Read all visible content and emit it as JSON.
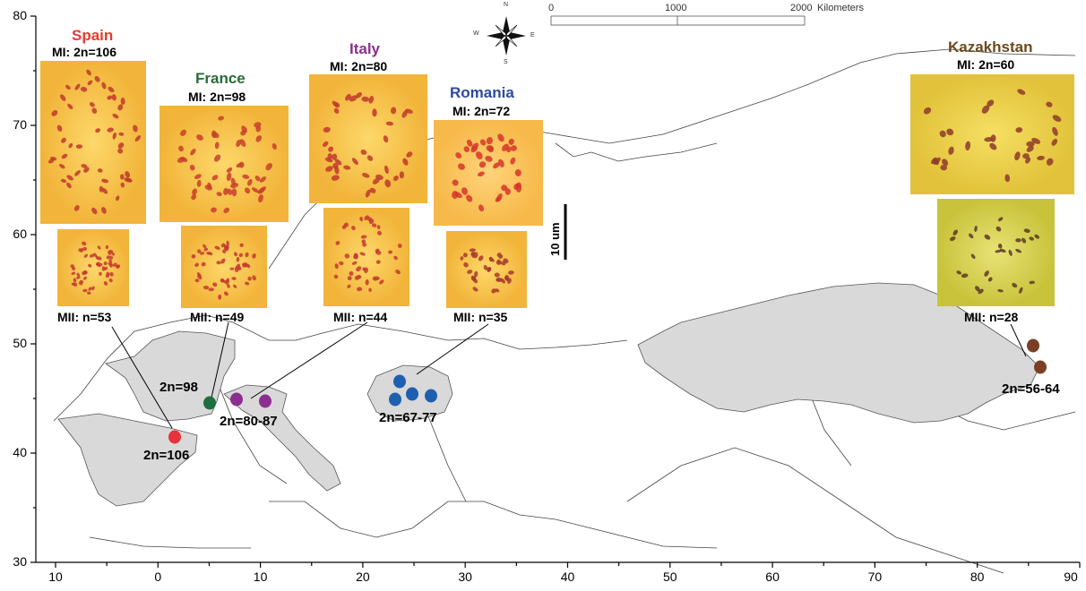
{
  "axes": {
    "y_ticks": [
      "80",
      "70",
      "60",
      "50",
      "40",
      "30"
    ],
    "x_ticks": [
      "10",
      "0",
      "10",
      "20",
      "30",
      "40",
      "50",
      "60",
      "70",
      "80",
      "90"
    ]
  },
  "scale_bar": {
    "labels": [
      "0",
      "1000",
      "2000"
    ],
    "unit": "Kilometers"
  },
  "compass": {
    "n": "N",
    "s": "S",
    "e": "E",
    "w": "W"
  },
  "micro_scale_bar": "10 um",
  "countries": [
    {
      "name": "Spain",
      "color": "#e63a30",
      "mi": "MI: 2n=106",
      "mii": "MII: n=53",
      "site_count": "2n=106"
    },
    {
      "name": "France",
      "color": "#2b6b3a",
      "mi": "MI: 2n=98",
      "mii": "MII: n=49",
      "site_count": "2n=98"
    },
    {
      "name": "Italy",
      "color": "#8a2f8c",
      "mi": "MI: 2n=80",
      "mii": "MII: n=44",
      "site_count": "2n=80-87"
    },
    {
      "name": "Romania",
      "color": "#2d4aa0",
      "mi": "MI: 2n=72",
      "mii": "MII: n=35",
      "site_count": "2n=67-77"
    },
    {
      "name": "Kazakhstan",
      "color": "#6b4a1e",
      "mi": "MI: 2n=60",
      "mii": "MII: n=28",
      "site_count": "2n=56-64"
    }
  ],
  "site_colors": {
    "spain": "#e8323a",
    "france": "#1f6e40",
    "italy": "#8b2e91",
    "romania": "#1f5fb0",
    "kazakhstan": "#7a4023"
  },
  "land_fill": "#d9d9d9"
}
